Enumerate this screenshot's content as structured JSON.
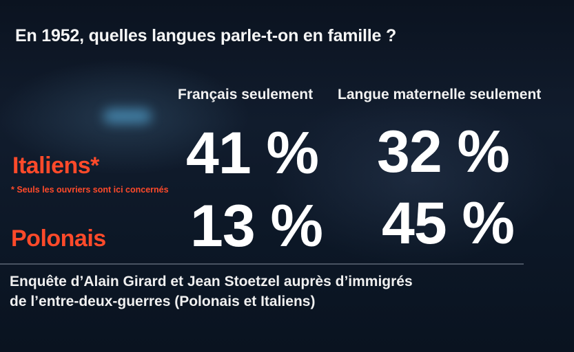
{
  "chart_data": {
    "type": "table",
    "title": "En 1952, quelles langues parle-t-on en famille ?",
    "columns": [
      "Français seulement",
      "Langue maternelle seulement"
    ],
    "rows": [
      {
        "label": "Italiens*",
        "values": [
          "41 %",
          "32 %"
        ]
      },
      {
        "label": "Polonais",
        "values": [
          "13 %",
          "45 %"
        ]
      }
    ],
    "note": "* Seuls les ouvriers sont ici concernés",
    "source": [
      "Enquête d’Alain Girard et Jean Stoetzel auprès d’immigrés",
      "de l’entre-deux-guerres (Polonais et Italiens)"
    ]
  },
  "colors": {
    "background": "#0b1320",
    "row_label": "#ff4a2a",
    "text": "#ffffff"
  }
}
